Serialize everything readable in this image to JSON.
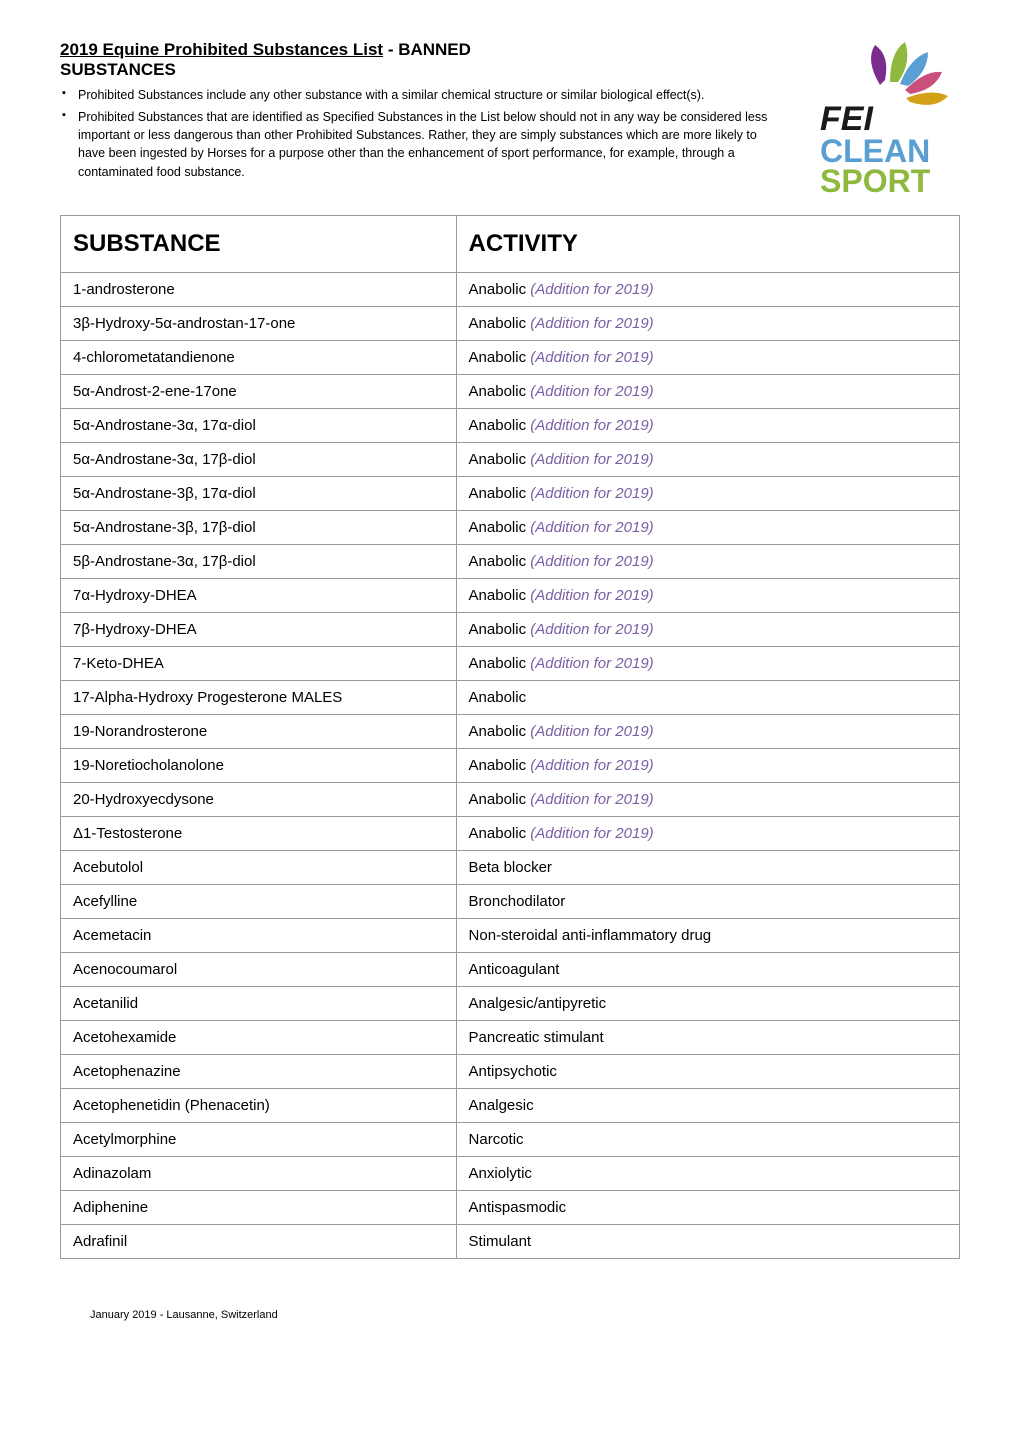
{
  "header": {
    "title_underlined": "2019 Equine Prohibited Substances List",
    "title_suffix": " - BANNED",
    "subtitle": "SUBSTANCES",
    "bullets": [
      "Prohibited Substances include any other substance with a similar chemical structure or similar biological effect(s).",
      "Prohibited Substances that are identified as Specified Substances in the List below should not in any way be considered less important or less dangerous than other Prohibited Substances. Rather, they are simply substances which are more likely to have been ingested by Horses for a purpose other than the enhancement of sport performance, for example, through a contaminated food substance."
    ]
  },
  "logo": {
    "fei": "FEI",
    "clean": "CLEAN",
    "sport": "SPORT",
    "petal_colors": [
      "#7b2d8e",
      "#8fb93e",
      "#5a9fd4",
      "#c94f7c",
      "#d4a017"
    ],
    "fei_color": "#1a1a1a",
    "clean_color": "#5a9fd4",
    "sport_color": "#8fb93e"
  },
  "table": {
    "col_substance": "SUBSTANCE",
    "col_activity": "ACTIVITY",
    "addition_text": "(Addition for 2019)",
    "addition_color": "#7b5fa3",
    "rows": [
      {
        "s": "1-androsterone",
        "a": "Anabolic",
        "add": true
      },
      {
        "s": "3β-Hydroxy-5α-androstan-17-one",
        "a": "Anabolic",
        "add": true
      },
      {
        "s": "4-chlorometatandienone",
        "a": "Anabolic",
        "add": true
      },
      {
        "s": "5α-Androst-2-ene-17one",
        "a": "Anabolic",
        "add": true
      },
      {
        "s": "5α-Androstane-3α, 17α-diol",
        "a": "Anabolic",
        "add": true
      },
      {
        "s": "5α-Androstane-3α, 17β-diol",
        "a": "Anabolic",
        "add": true
      },
      {
        "s": "5α-Androstane-3β, 17α-diol",
        "a": "Anabolic",
        "add": true
      },
      {
        "s": "5α-Androstane-3β, 17β-diol",
        "a": "Anabolic",
        "add": true
      },
      {
        "s": "5β-Androstane-3α, 17β-diol",
        "a": "Anabolic",
        "add": true
      },
      {
        "s": "7α-Hydroxy-DHEA",
        "a": "Anabolic",
        "add": true
      },
      {
        "s": "7β-Hydroxy-DHEA",
        "a": "Anabolic",
        "add": true
      },
      {
        "s": "7-Keto-DHEA",
        "a": "Anabolic",
        "add": true
      },
      {
        "s": "17-Alpha-Hydroxy Progesterone MALES",
        "a": "Anabolic",
        "add": false
      },
      {
        "s": "19-Norandrosterone",
        "a": "Anabolic",
        "add": true
      },
      {
        "s": "19-Noretiocholanolone",
        "a": "Anabolic",
        "add": true
      },
      {
        "s": "20-Hydroxyecdysone",
        "a": "Anabolic",
        "add": true
      },
      {
        "s": "Δ1-Testosterone",
        "a": "Anabolic",
        "add": true
      },
      {
        "s": "Acebutolol",
        "a": "Beta blocker",
        "add": false
      },
      {
        "s": "Acefylline",
        "a": "Bronchodilator",
        "add": false
      },
      {
        "s": "Acemetacin",
        "a": "Non-steroidal anti-inflammatory drug",
        "add": false
      },
      {
        "s": "Acenocoumarol",
        "a": "Anticoagulant",
        "add": false
      },
      {
        "s": "Acetanilid",
        "a": "Analgesic/antipyretic",
        "add": false
      },
      {
        "s": "Acetohexamide",
        "a": "Pancreatic stimulant",
        "add": false
      },
      {
        "s": "Acetophenazine",
        "a": "Antipsychotic",
        "add": false
      },
      {
        "s": "Acetophenetidin (Phenacetin)",
        "a": "Analgesic",
        "add": false
      },
      {
        "s": "Acetylmorphine",
        "a": "Narcotic",
        "add": false
      },
      {
        "s": "Adinazolam",
        "a": "Anxiolytic",
        "add": false
      },
      {
        "s": "Adiphenine",
        "a": "Antispasmodic",
        "add": false
      },
      {
        "s": "Adrafinil",
        "a": "Stimulant",
        "add": false
      }
    ]
  },
  "footer": "January 2019 - Lausanne, Switzerland"
}
